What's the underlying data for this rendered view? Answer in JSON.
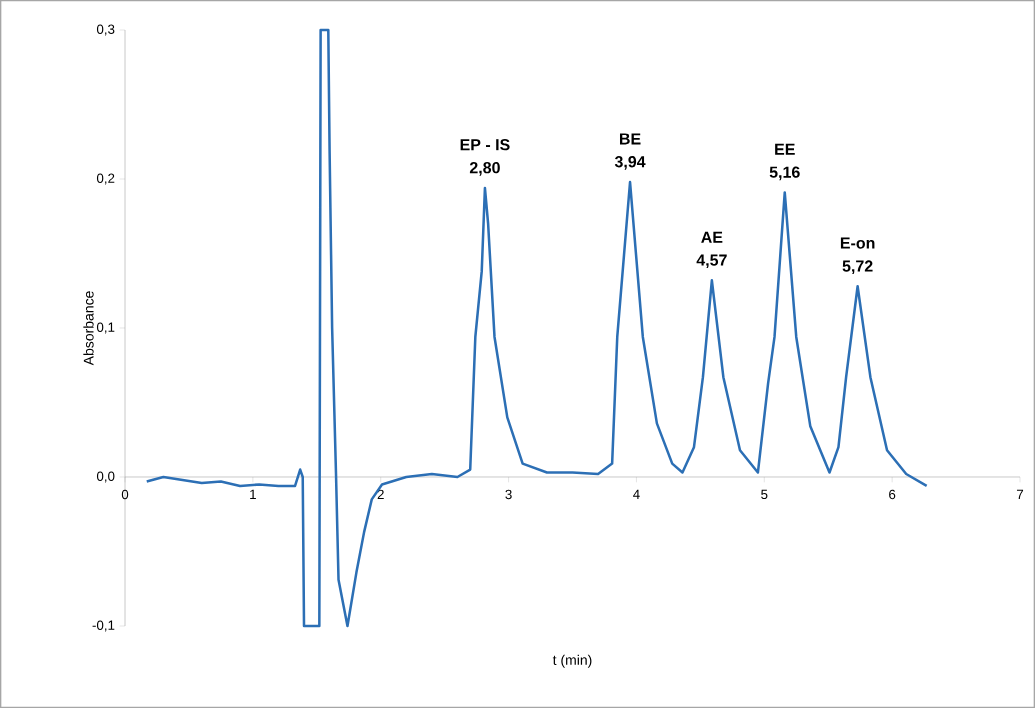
{
  "chart_data": {
    "type": "line",
    "xlabel": "t (min)",
    "ylabel": "Absorbance",
    "xlim": [
      0,
      7
    ],
    "ylim": [
      -0.1,
      0.3
    ],
    "xticks": [
      0,
      1,
      2,
      3,
      4,
      5,
      6,
      7
    ],
    "yticks": [
      {
        "value": -0.1,
        "label": "-0,1"
      },
      {
        "value": 0,
        "label": "0,0"
      },
      {
        "value": 0.1,
        "label": "0,1"
      },
      {
        "value": 0.2,
        "label": "0,2"
      },
      {
        "value": 0.3,
        "label": "0,3"
      }
    ],
    "marker": "none",
    "line_style": "solid",
    "series": [
      {
        "color": "#2c6fb5",
        "x": [
          0.17,
          0.3,
          0.45,
          0.6,
          0.75,
          0.9,
          1.05,
          1.2,
          1.33,
          1.37,
          1.39,
          1.4,
          1.52,
          1.53,
          1.59,
          1.6,
          1.62,
          1.65,
          1.67,
          1.74,
          1.81,
          1.87,
          1.93,
          2.01,
          2.2,
          2.4,
          2.6,
          2.7,
          2.74,
          2.79,
          2.815,
          2.84,
          2.89,
          2.99,
          3.11,
          3.3,
          3.5,
          3.7,
          3.81,
          3.85,
          3.95,
          4.05,
          4.16,
          4.28,
          4.36,
          4.45,
          4.52,
          4.59,
          4.68,
          4.81,
          4.95,
          5.03,
          5.08,
          5.16,
          5.25,
          5.36,
          5.51,
          5.58,
          5.64,
          5.73,
          5.83,
          5.96,
          6.11,
          6.27
        ],
        "values": [
          -0.003,
          0.0,
          -0.002,
          -0.004,
          -0.003,
          -0.006,
          -0.005,
          -0.006,
          -0.006,
          0.005,
          0.0,
          -0.1,
          -0.1,
          0.3,
          0.3,
          0.22,
          0.1,
          0.003,
          -0.069,
          -0.1,
          -0.064,
          -0.037,
          -0.015,
          -0.005,
          0.0,
          0.002,
          0.0,
          0.005,
          0.094,
          0.138,
          0.194,
          0.17,
          0.094,
          0.04,
          0.009,
          0.003,
          0.003,
          0.002,
          0.009,
          0.094,
          0.198,
          0.094,
          0.036,
          0.009,
          0.003,
          0.02,
          0.067,
          0.132,
          0.067,
          0.018,
          0.003,
          0.063,
          0.094,
          0.191,
          0.094,
          0.034,
          0.003,
          0.02,
          0.067,
          0.128,
          0.067,
          0.018,
          0.002,
          -0.006
        ]
      }
    ],
    "annotations": [
      {
        "text": "EP - IS",
        "x": 2.815,
        "y": 0.194
      },
      {
        "text": "2,80",
        "x": 2.815,
        "y": 0.194
      },
      {
        "text": "BE",
        "x": 3.95,
        "y": 0.198
      },
      {
        "text": "3,94",
        "x": 3.95,
        "y": 0.198
      },
      {
        "text": "AE",
        "x": 4.59,
        "y": 0.132
      },
      {
        "text": "4,57",
        "x": 4.59,
        "y": 0.132
      },
      {
        "text": "EE",
        "x": 5.16,
        "y": 0.191
      },
      {
        "text": "5,16",
        "x": 5.16,
        "y": 0.191
      },
      {
        "text": "E-on",
        "x": 5.73,
        "y": 0.128
      },
      {
        "text": "5,72",
        "x": 5.73,
        "y": 0.128
      }
    ]
  }
}
